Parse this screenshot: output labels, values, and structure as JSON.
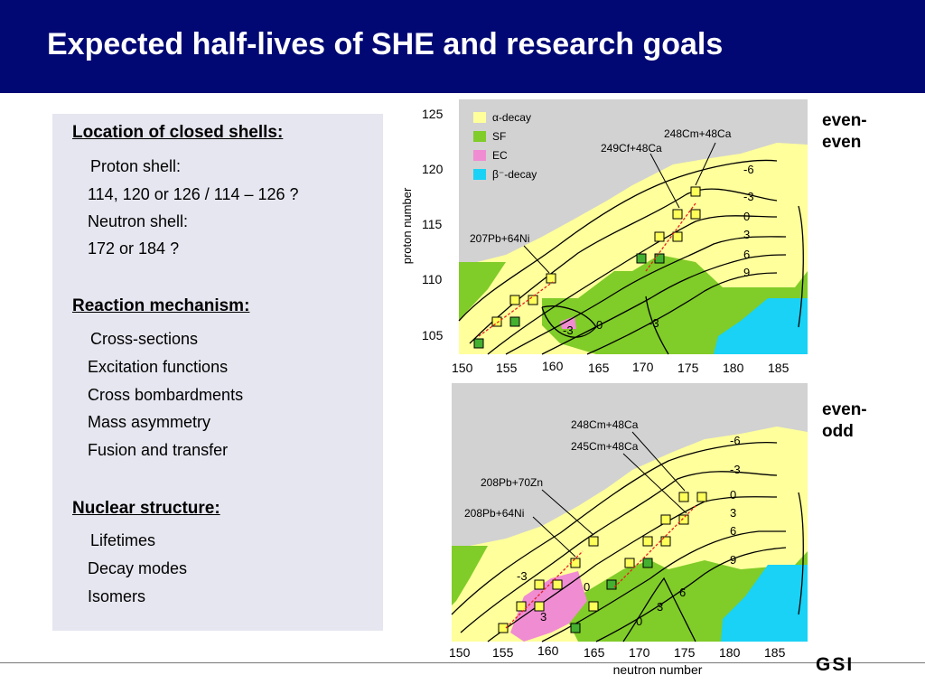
{
  "header": {
    "title": "Expected half-lives of SHE and research goals"
  },
  "sections": [
    {
      "heading": "Location of closed shells:",
      "items": [
        "Proton shell:",
        "114, 120 or 126 / 114 – 126 ?",
        "Neutron shell:",
        "172 or 184 ?"
      ]
    },
    {
      "heading": "Reaction mechanism:",
      "items": [
        "Cross-sections",
        "Excitation functions",
        "Cross bombardments",
        "Mass asymmetry",
        "Fusion and transfer"
      ]
    },
    {
      "heading": "Nuclear structure:",
      "items": [
        "Lifetimes",
        "Decay modes",
        "Isomers"
      ]
    }
  ],
  "side_labels": {
    "even_even": [
      "even-",
      "even"
    ],
    "even_odd": [
      "even-",
      "odd"
    ]
  },
  "logo": "GSI",
  "colors": {
    "title_bar": "#020873",
    "panel": "#e6e6f0",
    "alpha": "#ffff9c",
    "sf": "#80cc28",
    "ec": "#f08cd2",
    "beta": "#19d2f5",
    "unknown": "#d2d2d2"
  },
  "chart_data": [
    {
      "type": "heatmap",
      "panel": "even-even",
      "xlabel": "",
      "ylabel": "proton number",
      "x_ticks": [
        "150",
        "155",
        "160",
        "165",
        "170",
        "175",
        "180",
        "185"
      ],
      "y_ticks": [
        "105",
        "110",
        "115",
        "120",
        "125"
      ],
      "xlim": [
        150,
        188
      ],
      "ylim": [
        104,
        126
      ],
      "legend": [
        {
          "label": "α-decay",
          "color": "#ffff9c"
        },
        {
          "label": "SF",
          "color": "#80cc28"
        },
        {
          "label": "EC",
          "color": "#f08cd2"
        },
        {
          "label": "β⁻-decay",
          "color": "#19d2f5"
        }
      ],
      "contour_labels": [
        "-6",
        "-3",
        "0",
        "3",
        "6",
        "9",
        "-3",
        "0",
        "-3"
      ],
      "reactions": [
        "248Cm+48Ca",
        "249Cf+48Ca",
        "207Pb+64Ni"
      ]
    },
    {
      "type": "heatmap",
      "panel": "even-odd",
      "xlabel": "neutron number",
      "ylabel": "",
      "x_ticks": [
        "150",
        "155",
        "160",
        "165",
        "170",
        "175",
        "180",
        "185"
      ],
      "xlim": [
        150,
        188
      ],
      "contour_labels": [
        "-6",
        "-3",
        "0",
        "3",
        "6",
        "9",
        "-3",
        "0",
        "6",
        "3",
        "0",
        "3"
      ],
      "reactions": [
        "248Cm+48Ca",
        "245Cm+48Ca",
        "208Pb+70Zn",
        "208Pb+64Ni"
      ]
    }
  ]
}
